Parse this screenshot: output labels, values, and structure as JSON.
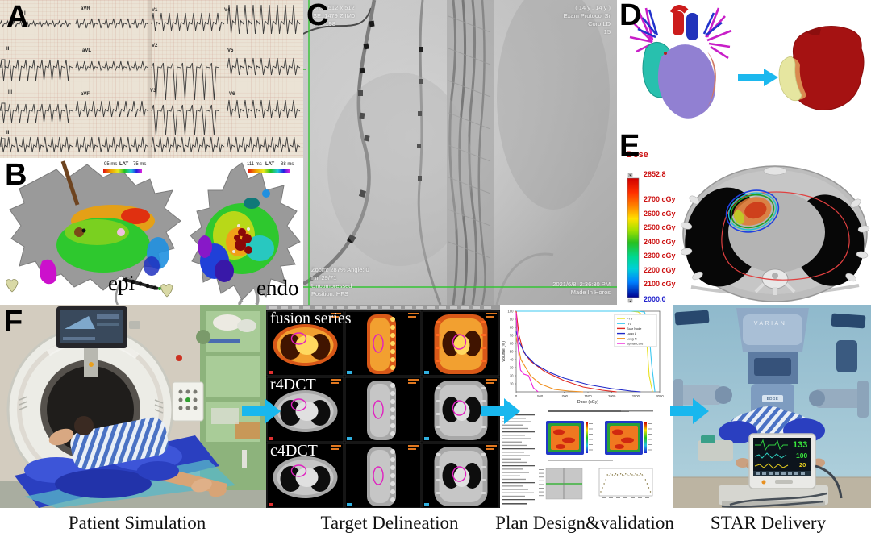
{
  "figure": {
    "panels": {
      "a": "A",
      "b": "B",
      "c": "C",
      "d": "D",
      "e": "E",
      "f": "F"
    },
    "captions": {
      "patient_simulation": "Patient Simulation",
      "target_delineation": "Target Delineation",
      "plan_design": "Plan Design&validation",
      "star_delivery": "STAR Delivery"
    }
  },
  "panel_a": {
    "leads": [
      "I",
      "aVR",
      "V1",
      "V4",
      "II",
      "aVL",
      "V2",
      "V5",
      "III",
      "aVF",
      "V3",
      "V6",
      "II"
    ]
  },
  "panel_b": {
    "left_scale": {
      "min": "-95 ms",
      "label": "LAT",
      "max": "-75 ms"
    },
    "right_scale": {
      "min": "-111 ms",
      "label": "LAT",
      "max": "-88 ms"
    },
    "left_view": "epi",
    "right_view": "endo"
  },
  "panel_c": {
    "top_left": [
      "Size: 512 x 512",
      "SE: 1479 Z IM0",
      "WL: 198"
    ],
    "top_right": [
      "( 14 y , 14 y )",
      "Exam Protocol Sr",
      "Coro LD",
      "15"
    ],
    "bottom_left": [
      "Zoom: 287% Angle: 0",
      "Im: 29/71",
      "Uncompressed",
      "Position: HFS"
    ],
    "bottom_right": [
      "2021/6/8, 2:36:30 PM",
      "Made In Horos"
    ]
  },
  "panel_e": {
    "title": "Dose",
    "max_value": "2852.8",
    "min_value": "2000.0",
    "ticks": [
      "2700 cGy",
      "2600 cGy",
      "2500 cGy",
      "2400 cGy",
      "2300 cGy",
      "2200 cGy",
      "2100 cGy"
    ]
  },
  "panel_f": {
    "ct_rows": [
      "fusion series",
      "r4DCT",
      "c4DCT"
    ],
    "linac_brand": "VARIAN",
    "linac_model": "EDGE",
    "monitor": {
      "heart_rate": "133",
      "spo2": "100",
      "resp": "20"
    }
  },
  "chart_data": {
    "type": "line",
    "title": "",
    "xlabel": "Dose (cGy)",
    "ylabel": "Volume (%)",
    "xlim": [
      0,
      3000
    ],
    "ylim": [
      0,
      100
    ],
    "x_ticks": [
      0,
      500,
      1000,
      1500,
      2000,
      2500,
      3000
    ],
    "y_ticks": [
      10,
      20,
      30,
      40,
      50,
      60,
      70,
      80,
      90,
      100
    ],
    "legend_position": "top-right",
    "series": [
      {
        "name": "PTV",
        "color": "#e8e020",
        "x": [
          0,
          2400,
          2550,
          2650,
          2720,
          2780,
          2850
        ],
        "y": [
          100,
          100,
          99,
          95,
          70,
          20,
          0
        ]
      },
      {
        "name": "ITV",
        "color": "#3cc8f0",
        "x": [
          0,
          2550,
          2680,
          2760,
          2830,
          2900
        ],
        "y": [
          100,
          100,
          99,
          88,
          35,
          0
        ]
      },
      {
        "name": "Scar Node",
        "color": "#e02820",
        "x": [
          0,
          60,
          150,
          300,
          600,
          1000,
          1400,
          1800,
          2100
        ],
        "y": [
          100,
          70,
          50,
          38,
          25,
          14,
          6,
          2,
          0
        ]
      },
      {
        "name": "Lung L",
        "color": "#2028c8",
        "x": [
          0,
          60,
          200,
          400,
          700,
          1000,
          1500,
          2000,
          2400,
          2600
        ],
        "y": [
          75,
          62,
          46,
          34,
          24,
          17,
          9,
          4,
          1,
          0
        ]
      },
      {
        "name": "Lung R",
        "color": "#f09020",
        "x": [
          0,
          100,
          300,
          500,
          800,
          1100,
          1400
        ],
        "y": [
          68,
          40,
          20,
          10,
          3,
          1,
          0
        ]
      },
      {
        "name": "Spinal Cord",
        "color": "#f024d8",
        "x": [
          0,
          40,
          90,
          160,
          260,
          360,
          460
        ],
        "y": [
          98,
          55,
          27,
          22,
          20,
          5,
          0
        ]
      }
    ]
  }
}
